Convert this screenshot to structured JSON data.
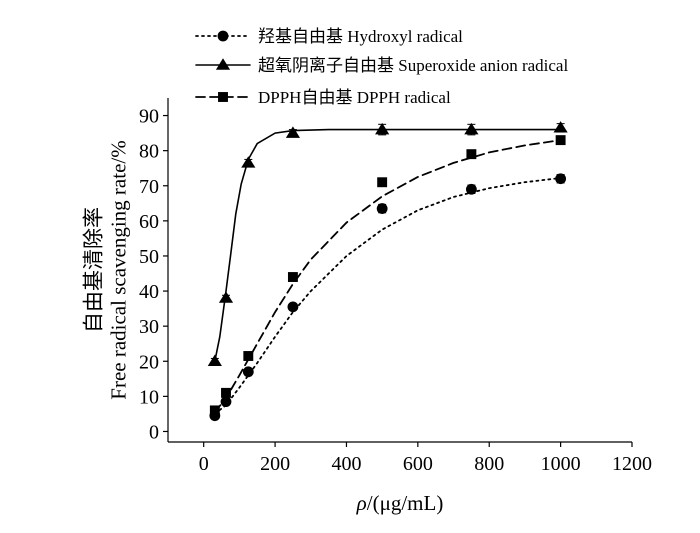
{
  "chart_data": {
    "type": "line",
    "xlabel_symbol": "ρ",
    "xlabel_unit": "/(μg/mL)",
    "ylabel_cn": "自由基清除率",
    "ylabel_en": "Free radical scavenging rate/%",
    "xlim": [
      -100,
      1200
    ],
    "ylim": [
      -3,
      95
    ],
    "x_ticks": [
      0,
      200,
      400,
      600,
      800,
      1000,
      1200
    ],
    "y_ticks": [
      0,
      10,
      20,
      30,
      40,
      50,
      60,
      70,
      80,
      90
    ],
    "series": [
      {
        "name": "羟基自由基 Hydroxyl radical",
        "marker": "circle",
        "line": "dotted",
        "x": [
          31.25,
          62.5,
          125,
          250,
          500,
          750,
          1000
        ],
        "values": [
          4.5,
          8.5,
          17.0,
          35.5,
          63.5,
          69.0,
          72.0
        ],
        "errors": [
          0.8,
          0.8,
          0.8,
          0.8,
          1.2,
          1.2,
          1.2
        ],
        "fit": [
          [
            31.25,
            5.0
          ],
          [
            62.5,
            7.5
          ],
          [
            100,
            12.5
          ],
          [
            150,
            19.5
          ],
          [
            200,
            27.0
          ],
          [
            250,
            34.0
          ],
          [
            300,
            40.0
          ],
          [
            400,
            50.0
          ],
          [
            500,
            57.5
          ],
          [
            600,
            63.0
          ],
          [
            700,
            66.8
          ],
          [
            800,
            69.3
          ],
          [
            900,
            71.0
          ],
          [
            1000,
            72.2
          ]
        ]
      },
      {
        "name": "超氧阴离子自由基 Superoxide anion radical",
        "marker": "triangle",
        "line": "solid",
        "x": [
          31.25,
          62.5,
          125,
          250,
          500,
          750,
          1000
        ],
        "values": [
          20.0,
          38.0,
          76.5,
          85.0,
          86.0,
          86.0,
          86.5
        ],
        "errors": [
          0.8,
          0.8,
          1.0,
          1.0,
          1.5,
          1.5,
          1.2
        ],
        "fit": [
          [
            31.25,
            20.0
          ],
          [
            45,
            27.0
          ],
          [
            62.5,
            40.0
          ],
          [
            75,
            50.0
          ],
          [
            90,
            62.0
          ],
          [
            105,
            70.5
          ],
          [
            125,
            77.5
          ],
          [
            150,
            82.0
          ],
          [
            200,
            85.0
          ],
          [
            250,
            85.7
          ],
          [
            350,
            86.0
          ],
          [
            500,
            86.0
          ],
          [
            750,
            86.0
          ],
          [
            1000,
            86.0
          ]
        ]
      },
      {
        "name": "DPPH自由基 DPPH radical",
        "marker": "square",
        "line": "dashed",
        "x": [
          31.25,
          62.5,
          125,
          250,
          500,
          750,
          1000
        ],
        "values": [
          6.0,
          11.0,
          21.5,
          44.0,
          71.0,
          79.0,
          83.0
        ],
        "errors": [
          0.8,
          0.8,
          0.8,
          0.8,
          1.2,
          1.0,
          1.0
        ],
        "fit": [
          [
            31.25,
            5.5
          ],
          [
            62.5,
            9.5
          ],
          [
            100,
            16.0
          ],
          [
            150,
            25.0
          ],
          [
            200,
            34.0
          ],
          [
            250,
            42.0
          ],
          [
            300,
            49.0
          ],
          [
            400,
            59.5
          ],
          [
            500,
            67.0
          ],
          [
            600,
            72.5
          ],
          [
            700,
            76.5
          ],
          [
            800,
            79.5
          ],
          [
            900,
            81.5
          ],
          [
            1000,
            83.0
          ]
        ]
      }
    ]
  }
}
